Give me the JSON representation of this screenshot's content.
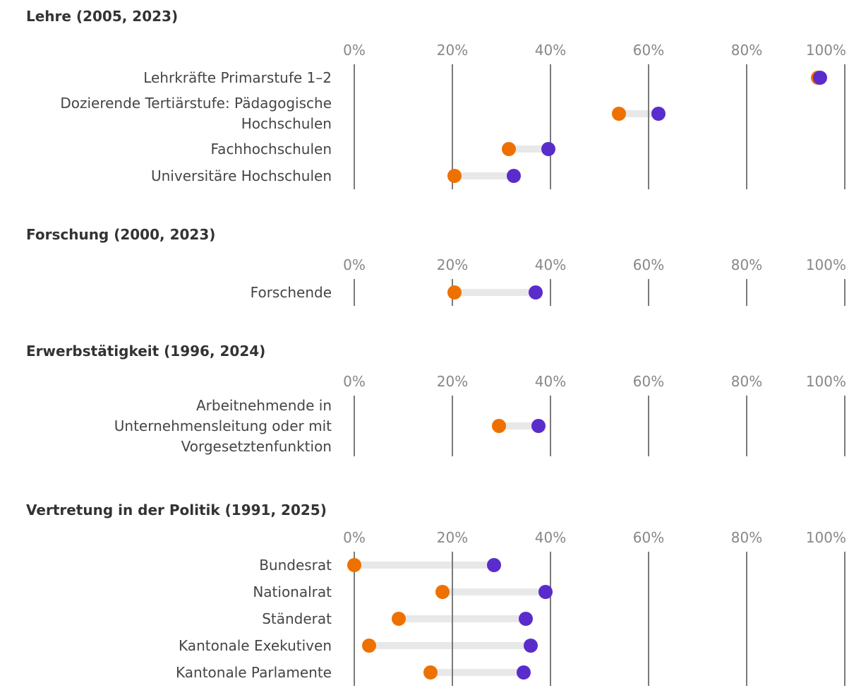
{
  "colors": {
    "start_dot": "#EE7100",
    "end_dot": "#5A2CCC",
    "connector": "#E8E8E8",
    "gridline": "#7A7A7A",
    "axis_label": "#878787",
    "row_label": "#454545",
    "section_title": "#333333"
  },
  "axis": {
    "min": 0,
    "max": 100,
    "tick_labels": [
      "0%",
      "20%",
      "40%",
      "60%",
      "80%",
      "100%"
    ]
  },
  "sections": [
    {
      "title": "Lehre (2005, 2023)",
      "rows": [
        {
          "label": "Lehrkräfte Primarstufe 1–2",
          "label_lines": [
            "Lehrkräfte Primarstufe 1–2"
          ],
          "start": 94.5,
          "end": 95
        },
        {
          "label": "Dozierende Tertiärstufe: Pädagogische Hochschulen",
          "label_lines": [
            "Dozierende Tertiärstufe: Pädagogische",
            "Hochschulen"
          ],
          "start": 54,
          "end": 62
        },
        {
          "label": "Fachhochschulen",
          "label_lines": [
            "Fachhochschulen"
          ],
          "start": 31.5,
          "end": 39.5
        },
        {
          "label": "Universitäre Hochschulen",
          "label_lines": [
            "Universitäre Hochschulen"
          ],
          "start": 20.5,
          "end": 32.5
        }
      ]
    },
    {
      "title": "Forschung (2000, 2023)",
      "rows": [
        {
          "label": "Forschende",
          "label_lines": [
            "Forschende"
          ],
          "start": 20.5,
          "end": 37
        }
      ]
    },
    {
      "title": "Erwerbstätigkeit (1996, 2024)",
      "rows": [
        {
          "label": "Arbeitnehmende in Unternehmensleitung oder mit Vorgesetztenfunktion",
          "label_lines": [
            "Arbeitnehmende in",
            "Unternehmensleitung oder mit",
            "Vorgesetztenfunktion"
          ],
          "start": 29.5,
          "end": 37.5
        }
      ]
    },
    {
      "title": "Vertretung in der Politik (1991, 2025)",
      "rows": [
        {
          "label": "Bundesrat",
          "label_lines": [
            "Bundesrat"
          ],
          "start": 0,
          "end": 28.5
        },
        {
          "label": "Nationalrat",
          "label_lines": [
            "Nationalrat"
          ],
          "start": 18,
          "end": 39
        },
        {
          "label": "Ständerat",
          "label_lines": [
            "Ständerat"
          ],
          "start": 9,
          "end": 35
        },
        {
          "label": "Kantonale Exekutiven",
          "label_lines": [
            "Kantonale Exekutiven"
          ],
          "start": 3,
          "end": 36
        },
        {
          "label": "Kantonale Parlamente",
          "label_lines": [
            "Kantonale Parlamente"
          ],
          "start": 15.5,
          "end": 34.5
        }
      ]
    }
  ],
  "chart_data": [
    {
      "type": "scatter",
      "variant": "dumbbell",
      "title": "Lehre (2005, 2023)",
      "categories": [
        "Lehrkräfte Primarstufe 1–2",
        "Dozierende Tertiärstufe: Pädagogische Hochschulen",
        "Fachhochschulen",
        "Universitäre Hochschulen"
      ],
      "series": [
        {
          "name": "2005",
          "color": "#EE7100",
          "values": [
            94.5,
            54,
            31.5,
            20.5
          ]
        },
        {
          "name": "2023",
          "color": "#5A2CCC",
          "values": [
            95,
            62,
            39.5,
            32.5
          ]
        }
      ],
      "xlim": [
        0,
        100
      ],
      "xticks": [
        "0%",
        "20%",
        "40%",
        "60%",
        "80%",
        "100%"
      ],
      "unit": "%",
      "grid": true,
      "legend": false
    },
    {
      "type": "scatter",
      "variant": "dumbbell",
      "title": "Forschung (2000, 2023)",
      "categories": [
        "Forschende"
      ],
      "series": [
        {
          "name": "2000",
          "color": "#EE7100",
          "values": [
            20.5
          ]
        },
        {
          "name": "2023",
          "color": "#5A2CCC",
          "values": [
            37
          ]
        }
      ],
      "xlim": [
        0,
        100
      ],
      "xticks": [
        "0%",
        "20%",
        "40%",
        "60%",
        "80%",
        "100%"
      ],
      "unit": "%",
      "grid": true,
      "legend": false
    },
    {
      "type": "scatter",
      "variant": "dumbbell",
      "title": "Erwerbstätigkeit (1996, 2024)",
      "categories": [
        "Arbeitnehmende in Unternehmensleitung oder mit Vorgesetztenfunktion"
      ],
      "series": [
        {
          "name": "1996",
          "color": "#EE7100",
          "values": [
            29.5
          ]
        },
        {
          "name": "2024",
          "color": "#5A2CCC",
          "values": [
            37.5
          ]
        }
      ],
      "xlim": [
        0,
        100
      ],
      "xticks": [
        "0%",
        "20%",
        "40%",
        "60%",
        "80%",
        "100%"
      ],
      "unit": "%",
      "grid": true,
      "legend": false
    },
    {
      "type": "scatter",
      "variant": "dumbbell",
      "title": "Vertretung in der Politik (1991, 2025)",
      "categories": [
        "Bundesrat",
        "Nationalrat",
        "Ständerat",
        "Kantonale Exekutiven",
        "Kantonale Parlamente"
      ],
      "series": [
        {
          "name": "1991",
          "color": "#EE7100",
          "values": [
            0,
            18,
            9,
            3,
            15.5
          ]
        },
        {
          "name": "2025",
          "color": "#5A2CCC",
          "values": [
            28.5,
            39,
            35,
            36,
            34.5
          ]
        }
      ],
      "xlim": [
        0,
        100
      ],
      "xticks": [
        "0%",
        "20%",
        "40%",
        "60%",
        "80%",
        "100%"
      ],
      "unit": "%",
      "grid": true,
      "legend": false
    }
  ]
}
